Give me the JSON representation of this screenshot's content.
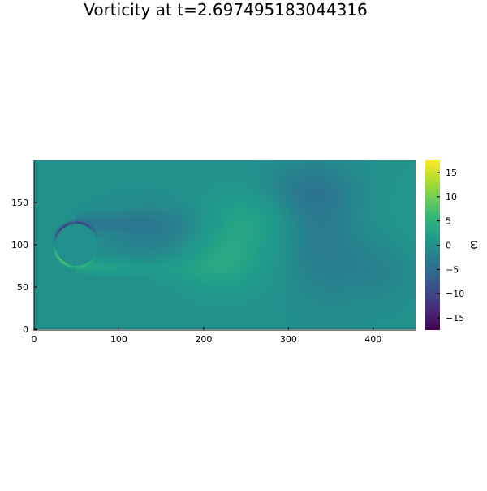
{
  "chart_data": {
    "type": "heatmap",
    "title": "Vorticity at t=2.697495183044316",
    "xlabel": "",
    "ylabel": "",
    "colorbar_label": "ω",
    "colormap": "viridis",
    "xlim": [
      0,
      450
    ],
    "ylim": [
      0,
      200
    ],
    "clim": [
      -17.5,
      17.5
    ],
    "x_ticks": [
      0,
      100,
      200,
      300,
      400
    ],
    "y_ticks": [
      0,
      50,
      100,
      150
    ],
    "colorbar_ticks": [
      15,
      10,
      5,
      0,
      -5,
      -10,
      -15
    ],
    "grid": false,
    "obstacle": {
      "shape": "circle",
      "center": [
        50,
        100
      ],
      "radius": 25
    }
  }
}
